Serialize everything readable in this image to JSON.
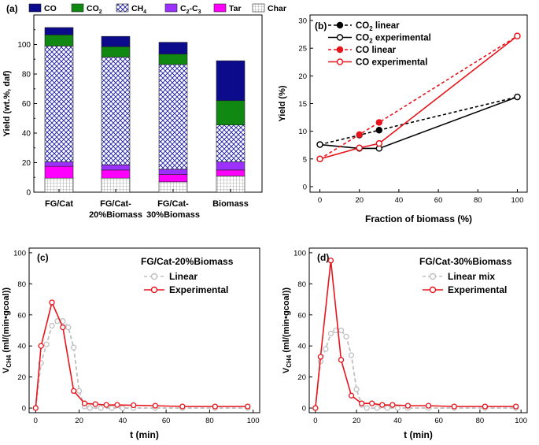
{
  "chart_data": [
    {
      "panel": "(a)",
      "type": "bar",
      "stacked": true,
      "title": "",
      "xlabel": "",
      "ylabel": "Yield (wt.%, daf)",
      "ylim": [
        0,
        120
      ],
      "yticks": [
        0,
        20,
        40,
        60,
        80,
        100
      ],
      "categories": [
        {
          "line1": "FG/Cat",
          "line2": ""
        },
        {
          "line1": "FG/Cat-",
          "line2": "20%Biomass"
        },
        {
          "line1": "FG/Cat-",
          "line2": "30%Biomass"
        },
        {
          "line1": "Biomass",
          "line2": ""
        }
      ],
      "legend": [
        {
          "label": "CO",
          "sub": ""
        },
        {
          "label": "CO",
          "sub": "2"
        },
        {
          "label": "CH",
          "sub": "4"
        },
        {
          "label": "C",
          "sub": "2",
          "suffix": "-C",
          "sub2": "3"
        },
        {
          "label": "Tar",
          "sub": ""
        },
        {
          "label": "Char",
          "sub": ""
        }
      ],
      "series": [
        {
          "name": "Char",
          "color": "#ffffff",
          "pattern": "grid",
          "values": [
            9.5,
            9.5,
            7.0,
            11.0
          ]
        },
        {
          "name": "Tar",
          "color": "#ff00ff",
          "values": [
            8.0,
            5.5,
            5.0,
            4.0
          ]
        },
        {
          "name": "C2-C3",
          "color": "#9b30ff",
          "values": [
            3.0,
            3.5,
            3.5,
            5.5
          ]
        },
        {
          "name": "CH4",
          "color": "#1a1aa0",
          "pattern": "crosshatch",
          "values": [
            78.5,
            73.0,
            71.0,
            25.0
          ]
        },
        {
          "name": "CO2",
          "color": "#118811",
          "values": [
            7.5,
            7.0,
            7.0,
            16.5
          ]
        },
        {
          "name": "CO",
          "color": "#0b0b8c",
          "values": [
            5.0,
            7.0,
            8.0,
            27.0
          ]
        }
      ]
    },
    {
      "panel": "(b)",
      "type": "line",
      "xlabel": "Fraction of biomass (%)",
      "ylabel": "Yield (%)",
      "xlim": [
        -5,
        105
      ],
      "ylim": [
        -1,
        31
      ],
      "xticks": [
        0,
        20,
        40,
        60,
        80,
        100
      ],
      "yticks": [
        0,
        5,
        10,
        15,
        20,
        25,
        30
      ],
      "series": [
        {
          "name": "CO",
          "sub": "2",
          "suffix": " linear",
          "color": "#000000",
          "dashed": true,
          "marker": "filled",
          "x": [
            0,
            20,
            30,
            100
          ],
          "y": [
            7.6,
            9.3,
            10.2,
            16.2
          ]
        },
        {
          "name": "CO",
          "sub": "2",
          "suffix": " experimental",
          "color": "#000000",
          "dashed": false,
          "marker": "open",
          "x": [
            0,
            20,
            30,
            100
          ],
          "y": [
            7.6,
            6.9,
            6.9,
            16.2
          ]
        },
        {
          "name": "CO",
          "sub": "",
          "suffix": " linear",
          "color": "#e8141c",
          "dashed": true,
          "marker": "filled",
          "x": [
            0,
            20,
            30,
            100
          ],
          "y": [
            5.0,
            9.4,
            11.6,
            27.2
          ]
        },
        {
          "name": "CO",
          "sub": "",
          "suffix": " experimental",
          "color": "#e8141c",
          "dashed": false,
          "marker": "open",
          "x": [
            0,
            20,
            30,
            100
          ],
          "y": [
            5.0,
            7.0,
            7.8,
            27.2
          ]
        }
      ]
    },
    {
      "panel": "(c)",
      "type": "line",
      "annotation": "FG/Cat-20%Biomass",
      "xlabel": "t (min)",
      "ylabel": {
        "main": "V",
        "sub": "CH4",
        "rest": " (ml/(min•gcoal))"
      },
      "xlim": [
        -3,
        103
      ],
      "ylim": [
        -3,
        103
      ],
      "xticks": [
        0,
        20,
        40,
        60,
        80,
        100
      ],
      "yticks": [
        0,
        20,
        40,
        60,
        80,
        100
      ],
      "series": [
        {
          "name": "Linear",
          "color": "#c0c0c0",
          "dashed": true,
          "x": [
            0,
            2.5,
            5,
            7.5,
            10,
            12.5,
            15,
            17.5,
            20,
            22.5,
            25,
            30,
            35,
            40,
            45,
            55,
            67.5,
            82.5,
            97.5
          ],
          "y": [
            0,
            29,
            41,
            53,
            56,
            56,
            52,
            39,
            11,
            1,
            0,
            0,
            0,
            0,
            0,
            0,
            0,
            0,
            0
          ]
        },
        {
          "name": "Experimental",
          "color": "#e8141c",
          "dashed": false,
          "x": [
            0,
            2.5,
            7.5,
            12.5,
            17.5,
            22.5,
            27.5,
            32.5,
            37.5,
            45,
            55,
            67.5,
            82.5,
            97.5
          ],
          "y": [
            0,
            40,
            68,
            52,
            11,
            3,
            2.5,
            2,
            2,
            1.8,
            1.5,
            1,
            1,
            1
          ]
        }
      ]
    },
    {
      "panel": "(d)",
      "type": "line",
      "annotation": "FG/Cat-30%Biomass",
      "xlabel": "t (min)",
      "ylabel": {
        "main": "V",
        "sub": "CH4",
        "rest": " (ml/(min•gcoal))"
      },
      "xlim": [
        -3,
        103
      ],
      "ylim": [
        -3,
        103
      ],
      "xticks": [
        0,
        20,
        40,
        60,
        80,
        100
      ],
      "yticks": [
        0,
        20,
        40,
        60,
        80,
        100
      ],
      "series": [
        {
          "name": "Linear mix",
          "color": "#c0c0c0",
          "dashed": true,
          "x": [
            0,
            2.5,
            5,
            7.5,
            10,
            12.5,
            15,
            17.5,
            20,
            22.5,
            25,
            30,
            35,
            40,
            45,
            55,
            67.5,
            82.5,
            97.5
          ],
          "y": [
            0,
            30,
            38,
            48,
            50,
            50,
            46,
            34,
            12,
            2,
            0,
            0,
            0,
            0,
            0,
            0,
            0,
            0,
            0
          ]
        },
        {
          "name": "Experimental",
          "color": "#e8141c",
          "dashed": false,
          "x": [
            0,
            2.5,
            7.5,
            12.5,
            17.5,
            22.5,
            27.5,
            32.5,
            37.5,
            45,
            55,
            67.5,
            82.5,
            97.5
          ],
          "y": [
            0,
            33,
            95,
            31,
            8,
            3,
            3,
            2,
            2,
            1.5,
            1.5,
            1,
            1,
            1
          ]
        }
      ]
    }
  ]
}
